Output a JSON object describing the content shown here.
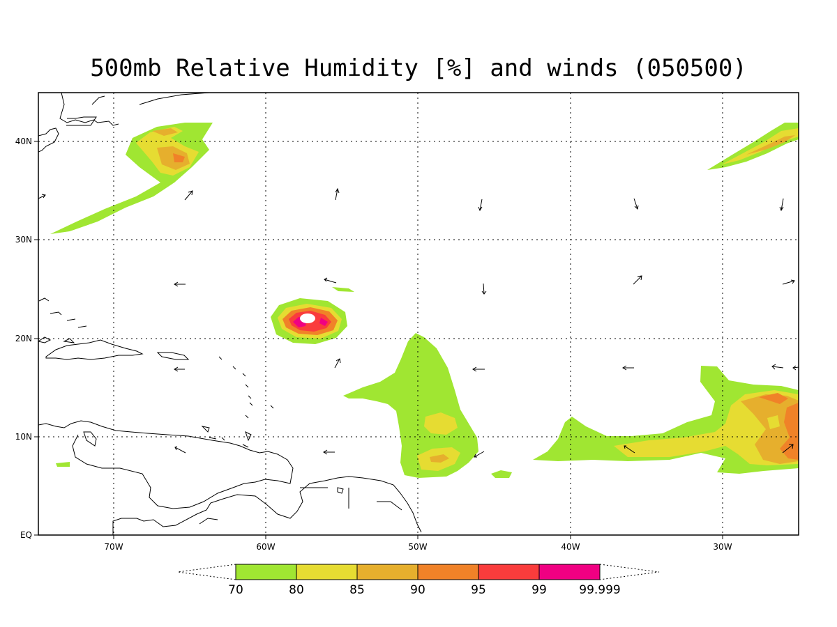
{
  "title": "500mb Relative Humidity [%] and winds (050500)",
  "map": {
    "lon_ticks": [
      "70W",
      "60W",
      "50W",
      "40W",
      "30W"
    ],
    "lat_ticks": [
      "40N",
      "30N",
      "20N",
      "10N",
      "EQ"
    ],
    "lon_range": [
      -75,
      -25
    ],
    "lat_range": [
      0,
      45
    ],
    "grid": "dotted"
  },
  "colorbar": {
    "levels": [
      "70",
      "80",
      "85",
      "90",
      "95",
      "99",
      "99.999"
    ],
    "colors": [
      "#a0e632",
      "#e6dc32",
      "#e6af2d",
      "#f08228",
      "#fa3c3c",
      "#f00082"
    ]
  },
  "colors": {
    "rh_70": "#a0e632",
    "rh_80": "#e6dc32",
    "rh_85": "#e6af2d",
    "rh_90": "#f08228",
    "rh_95": "#fa3c3c",
    "rh_99": "#f00082"
  }
}
